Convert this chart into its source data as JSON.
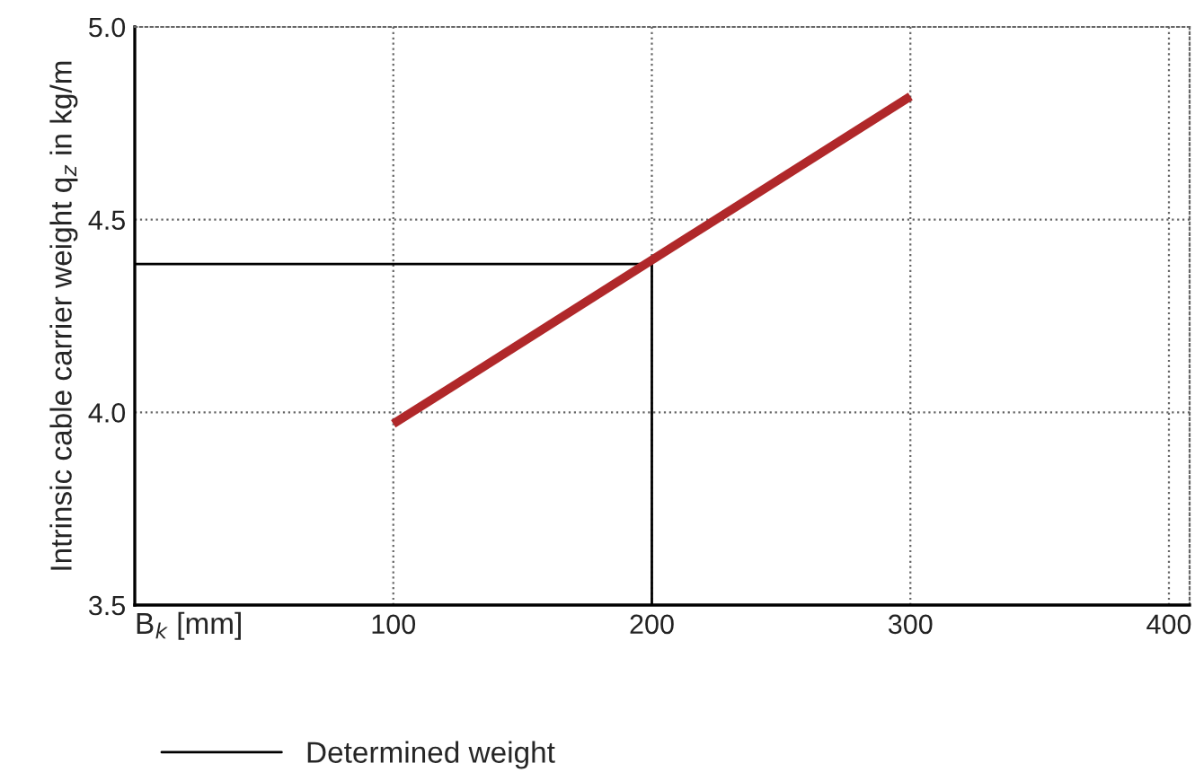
{
  "chart_data": {
    "type": "line",
    "xlabel": "B$_{k}$ [mm]",
    "ylabel": "Intrinsic cable carrier weight q$_{z}$ in kg/m",
    "xlim": [
      0,
      408
    ],
    "xticks": [
      100,
      200,
      300,
      400
    ],
    "ylim": [
      3.5,
      5.0
    ],
    "yticks": [
      {
        "value": 3.5,
        "label": "3.5"
      },
      {
        "value": 4.0,
        "label": "4.0"
      },
      {
        "value": 4.5,
        "label": "4.5"
      },
      {
        "value": 5.0,
        "label": "5.0"
      }
    ],
    "grid": true,
    "legend": "bottom",
    "line_style": "solid",
    "marker": "none",
    "series": [
      {
        "color": "#b0282a",
        "x": [
          100,
          300
        ],
        "values": [
          3.97,
          4.82
        ]
      },
      {
        "name": "Determined weight",
        "color": "#000000",
        "x": [
          0,
          200,
          200
        ],
        "values": [
          4.385,
          4.385,
          3.5
        ]
      }
    ]
  }
}
